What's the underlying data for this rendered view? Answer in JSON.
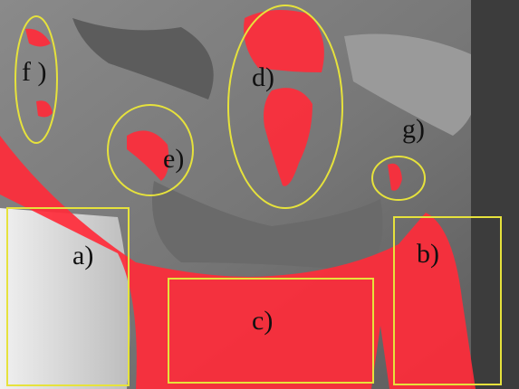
{
  "annotations": [
    "f )",
    "d)",
    "e)",
    "g)",
    "a)",
    "b)",
    "c)"
  ]
}
